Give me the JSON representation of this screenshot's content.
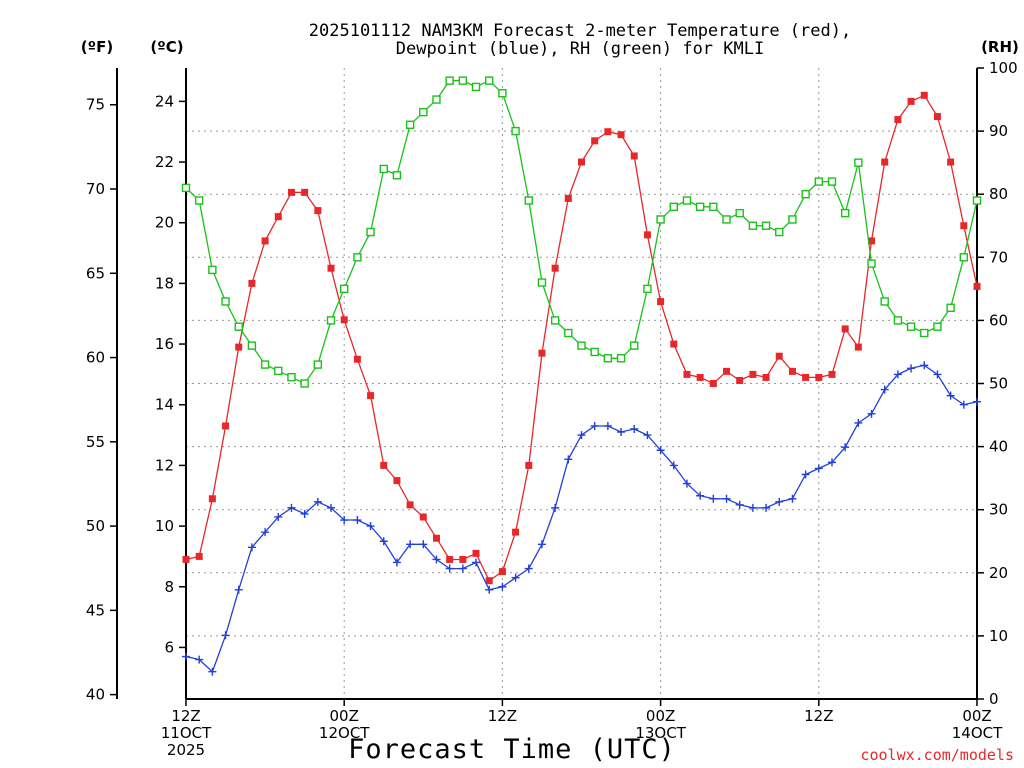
{
  "title_line1": "2025101112 NAM3KM Forecast 2-meter Temperature (red),",
  "title_line2": "Dewpoint (blue), RH (green) for KMLI",
  "unit_left_outer": "(ºF)",
  "unit_left_inner": "(ºC)",
  "unit_right": "(RH)",
  "x_axis_title": "Forecast Time (UTC)",
  "credit": "coolwx.com/models",
  "chart_data": {
    "type": "line",
    "x_hours_range": [
      0,
      60
    ],
    "xticks": [
      {
        "hour": 0,
        "lines": [
          "12Z",
          "11OCT",
          "2025"
        ]
      },
      {
        "hour": 12,
        "lines": [
          "00Z",
          "12OCT"
        ]
      },
      {
        "hour": 24,
        "lines": [
          "12Z"
        ]
      },
      {
        "hour": 36,
        "lines": [
          "00Z",
          "13OCT"
        ]
      },
      {
        "hour": 48,
        "lines": [
          "12Z"
        ]
      },
      {
        "hour": 60,
        "lines": [
          "00Z",
          "14OCT"
        ]
      }
    ],
    "y_celsius": {
      "range": [
        4.3,
        25.1
      ],
      "ticks": [
        6,
        8,
        10,
        12,
        14,
        16,
        18,
        20,
        22,
        24
      ]
    },
    "y_fahrenheit": {
      "ticks": [
        40,
        45,
        50,
        55,
        60,
        65,
        70,
        75
      ]
    },
    "y_rh": {
      "range": [
        0,
        100
      ],
      "ticks": [
        0,
        10,
        20,
        30,
        40,
        50,
        60,
        70,
        80,
        90,
        100
      ]
    },
    "grid": true,
    "series": [
      {
        "name": "Temperature",
        "color": "#e8272b",
        "axis": "celsius",
        "marker": "filled-square",
        "values": [
          8.9,
          9.0,
          10.9,
          13.3,
          15.9,
          18.0,
          19.4,
          20.2,
          21.0,
          21.0,
          20.4,
          18.5,
          16.8,
          15.5,
          14.3,
          12.0,
          11.5,
          10.7,
          10.3,
          9.6,
          8.9,
          8.9,
          9.1,
          8.2,
          8.5,
          9.8,
          12.0,
          15.7,
          18.5,
          20.8,
          22.0,
          22.7,
          23.0,
          22.9,
          22.2,
          19.6,
          17.4,
          16.0,
          15.0,
          14.9,
          14.7,
          15.1,
          14.8,
          15.0,
          14.9,
          15.6,
          15.1,
          14.9,
          14.9,
          15.0,
          16.5,
          15.9,
          19.4,
          22.0,
          23.4,
          24.0,
          24.2,
          23.5,
          22.0,
          19.9,
          17.9
        ]
      },
      {
        "name": "Dewpoint",
        "color": "#2140d8",
        "axis": "celsius",
        "marker": "plus",
        "values": [
          5.7,
          5.6,
          5.2,
          6.4,
          7.9,
          9.3,
          9.8,
          10.3,
          10.6,
          10.4,
          10.8,
          10.6,
          10.2,
          10.2,
          10.0,
          9.5,
          8.8,
          9.4,
          9.4,
          8.9,
          8.6,
          8.6,
          8.8,
          7.9,
          8.0,
          8.3,
          8.6,
          9.4,
          10.6,
          12.2,
          13.0,
          13.3,
          13.3,
          13.1,
          13.2,
          13.0,
          12.5,
          12.0,
          11.4,
          11.0,
          10.9,
          10.9,
          10.7,
          10.6,
          10.6,
          10.8,
          10.9,
          11.7,
          11.9,
          12.1,
          12.6,
          13.4,
          13.7,
          14.5,
          15.0,
          15.2,
          15.3,
          15.0,
          14.3,
          14.0,
          14.1
        ]
      },
      {
        "name": "RH",
        "color": "#19c219",
        "axis": "rh",
        "marker": "open-square",
        "values": [
          81,
          79,
          68,
          63,
          59,
          56,
          53,
          52,
          51,
          50,
          53,
          60,
          65,
          70,
          74,
          84,
          83,
          91,
          93,
          95,
          98,
          98,
          97,
          98,
          96,
          90,
          79,
          66,
          60,
          58,
          56,
          55,
          54,
          54,
          56,
          65,
          76,
          78,
          79,
          78,
          78,
          76,
          77,
          75,
          75,
          74,
          76,
          80,
          82,
          82,
          77,
          85,
          69,
          63,
          60,
          59,
          58,
          59,
          62,
          70,
          79
        ]
      }
    ]
  }
}
